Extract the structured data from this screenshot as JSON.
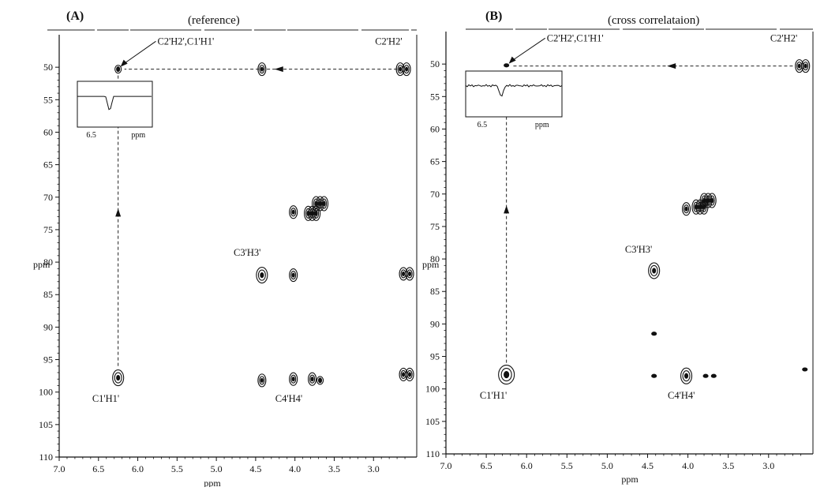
{
  "chart_data": [
    {
      "type": "scatter",
      "panel_label": "(A)",
      "title": "(reference)",
      "xlabel": "ppm",
      "ylabel": "ppm",
      "xlim": [
        7.0,
        2.45
      ],
      "ylim": [
        45,
        110
      ],
      "x_ticks": [
        "7.0",
        "6.5",
        "6.0",
        "5.5",
        "5.0",
        "4.5",
        "4.0",
        "3.5",
        "3.0"
      ],
      "y_ticks": [
        "50",
        "55",
        "60",
        "65",
        "70",
        "75",
        "80",
        "85",
        "90",
        "95",
        "100",
        "105",
        "110"
      ],
      "x_tick_values": [
        7.0,
        6.5,
        6.0,
        5.5,
        5.0,
        4.5,
        4.0,
        3.5,
        3.0
      ],
      "y_tick_values": [
        50,
        55,
        60,
        65,
        70,
        75,
        80,
        85,
        90,
        95,
        100,
        105,
        110
      ],
      "peaks": [
        {
          "x": 6.25,
          "y": 50.3,
          "size": "small"
        },
        {
          "x": 4.42,
          "y": 50.3,
          "size": "medium"
        },
        {
          "x": 2.62,
          "y": 50.3,
          "size": "double"
        },
        {
          "x": 4.02,
          "y": 72.3,
          "size": "medium"
        },
        {
          "x": 3.78,
          "y": 72.5,
          "size": "cluster"
        },
        {
          "x": 3.68,
          "y": 71.0,
          "size": "cluster"
        },
        {
          "x": 4.42,
          "y": 82.0,
          "size": "large"
        },
        {
          "x": 4.02,
          "y": 82.0,
          "size": "medium"
        },
        {
          "x": 2.58,
          "y": 81.8,
          "size": "double"
        },
        {
          "x": 6.25,
          "y": 97.8,
          "size": "large"
        },
        {
          "x": 4.42,
          "y": 98.2,
          "size": "medium"
        },
        {
          "x": 4.02,
          "y": 98.0,
          "size": "medium"
        },
        {
          "x": 3.78,
          "y": 98.0,
          "size": "medium"
        },
        {
          "x": 3.68,
          "y": 98.2,
          "size": "small"
        },
        {
          "x": 2.58,
          "y": 97.3,
          "size": "double"
        }
      ],
      "annotations": [
        {
          "text": "C2'H2',C1'H1'",
          "x": 5.75,
          "y": 46.5
        },
        {
          "text": "C2'H2'",
          "x": 2.98,
          "y": 46.5
        },
        {
          "text": "C3'H3'",
          "x": 4.78,
          "y": 79.0
        },
        {
          "text": "C1'H1'",
          "x": 6.58,
          "y": 101.5
        },
        {
          "text": "C4'H4'",
          "x": 4.25,
          "y": 101.5
        }
      ],
      "inset": {
        "ticks": [
          "6.5",
          "ppm"
        ]
      }
    },
    {
      "type": "scatter",
      "panel_label": "(B)",
      "title": "(cross correlataion)",
      "xlabel": "ppm",
      "ylabel": "ppm",
      "xlim": [
        7.0,
        2.45
      ],
      "ylim": [
        45,
        110
      ],
      "x_ticks": [
        "7.0",
        "6.5",
        "6.0",
        "5.5",
        "5.0",
        "4.5",
        "4.0",
        "3.5",
        "3.0"
      ],
      "y_ticks": [
        "50",
        "55",
        "60",
        "65",
        "70",
        "75",
        "80",
        "85",
        "90",
        "95",
        "100",
        "105",
        "110"
      ],
      "x_tick_values": [
        7.0,
        6.5,
        6.0,
        5.5,
        5.0,
        4.5,
        4.0,
        3.5,
        3.0
      ],
      "y_tick_values": [
        50,
        55,
        60,
        65,
        70,
        75,
        80,
        85,
        90,
        95,
        100,
        105,
        110
      ],
      "peaks": [
        {
          "x": 6.25,
          "y": 50.2,
          "size": "tiny"
        },
        {
          "x": 2.58,
          "y": 50.3,
          "size": "double"
        },
        {
          "x": 4.02,
          "y": 72.3,
          "size": "medium"
        },
        {
          "x": 3.85,
          "y": 72.0,
          "size": "cluster"
        },
        {
          "x": 3.75,
          "y": 71.0,
          "size": "cluster"
        },
        {
          "x": 4.42,
          "y": 81.8,
          "size": "large"
        },
        {
          "x": 4.42,
          "y": 91.5,
          "size": "tiny"
        },
        {
          "x": 6.25,
          "y": 97.8,
          "size": "xlarge"
        },
        {
          "x": 4.42,
          "y": 98.0,
          "size": "tiny"
        },
        {
          "x": 4.02,
          "y": 98.0,
          "size": "large"
        },
        {
          "x": 3.78,
          "y": 98.0,
          "size": "tiny"
        },
        {
          "x": 3.68,
          "y": 98.0,
          "size": "tiny"
        },
        {
          "x": 2.55,
          "y": 97.0,
          "size": "tiny"
        }
      ],
      "annotations": [
        {
          "text": "C2'H2',C1'H1'",
          "x": 5.75,
          "y": 46.5
        },
        {
          "text": "C2'H2'",
          "x": 2.98,
          "y": 46.5
        },
        {
          "text": "C3'H3'",
          "x": 4.78,
          "y": 79.0
        },
        {
          "text": "C1'H1'",
          "x": 6.58,
          "y": 101.5
        },
        {
          "text": "C4'H4'",
          "x": 4.25,
          "y": 101.5
        }
      ],
      "inset": {
        "ticks": [
          "6.5",
          "ppm"
        ]
      }
    }
  ]
}
